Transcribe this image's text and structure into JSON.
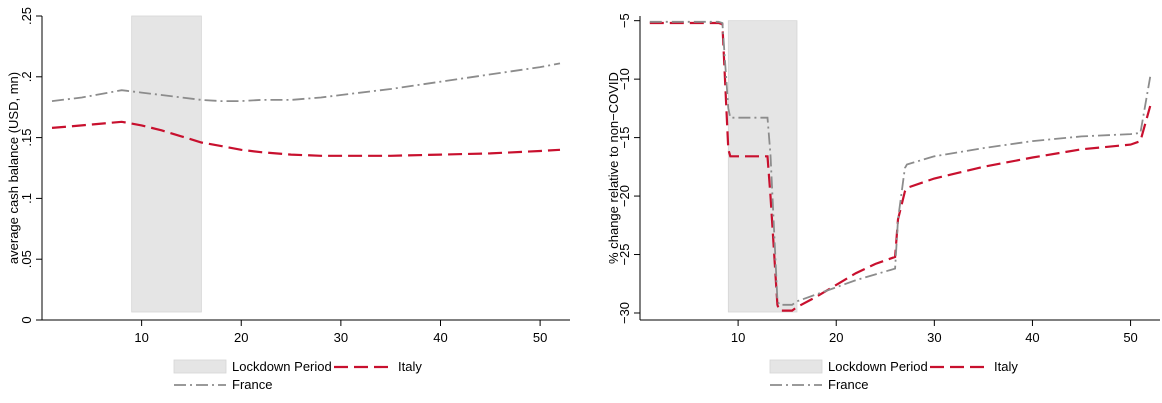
{
  "chart_data": [
    {
      "type": "line",
      "ylabel": "average cash balance (USD, mn)",
      "xlim": [
        0,
        53
      ],
      "ylim": [
        0,
        0.25
      ],
      "xticks": [
        10,
        20,
        30,
        40,
        50
      ],
      "yticks": [
        0,
        0.05,
        0.1,
        0.15,
        0.2,
        0.25
      ],
      "ytick_labels": [
        "0",
        ".05",
        ".1",
        ".15",
        ".2",
        ".25"
      ],
      "shaded_region": {
        "name": "Lockdown Period",
        "x": [
          9,
          16
        ],
        "color": "#e5e5e5"
      },
      "legend_position": "bottom",
      "series": [
        {
          "name": "Italy",
          "color": "#c8102e",
          "style": "dashed",
          "x": [
            1,
            4,
            8,
            10,
            12,
            14,
            16,
            18,
            20,
            22,
            25,
            28,
            30,
            35,
            40,
            45,
            50,
            52
          ],
          "y": [
            0.158,
            0.16,
            0.163,
            0.16,
            0.156,
            0.151,
            0.146,
            0.143,
            0.14,
            0.138,
            0.136,
            0.135,
            0.135,
            0.135,
            0.136,
            0.137,
            0.139,
            0.14
          ]
        },
        {
          "name": "France",
          "color": "#8c8c8c",
          "style": "dashdot",
          "x": [
            1,
            4,
            8,
            10,
            12,
            14,
            16,
            18,
            20,
            22,
            25,
            28,
            30,
            35,
            40,
            45,
            50,
            52
          ],
          "y": [
            0.18,
            0.183,
            0.189,
            0.187,
            0.185,
            0.183,
            0.181,
            0.18,
            0.18,
            0.181,
            0.181,
            0.183,
            0.185,
            0.19,
            0.196,
            0.202,
            0.208,
            0.211
          ]
        }
      ]
    },
    {
      "type": "line",
      "ylabel": "% change relative to non−COVID",
      "xlim": [
        0,
        53
      ],
      "ylim": [
        -30.6,
        -4.6
      ],
      "xticks": [
        10,
        20,
        30,
        40,
        50
      ],
      "yticks": [
        -30,
        -25,
        -20,
        -15,
        -10,
        -5
      ],
      "ytick_labels": [
        "−30",
        "−25",
        "−20",
        "−15",
        "−10",
        "−5"
      ],
      "shaded_region": {
        "name": "Lockdown Period",
        "x": [
          9,
          16
        ],
        "color": "#e5e5e5"
      },
      "legend_position": "bottom",
      "series": [
        {
          "name": "Italy",
          "color": "#c8102e",
          "style": "dashed",
          "x": [
            1,
            8,
            8.4,
            9,
            9.2,
            13,
            13.3,
            14,
            14.2,
            15.5,
            16,
            18,
            20,
            22,
            24,
            26,
            26.3,
            27,
            27.2,
            30,
            35,
            40,
            45,
            50,
            51,
            52
          ],
          "y": [
            -5.2,
            -5.2,
            -5.3,
            -16.0,
            -16.6,
            -16.6,
            -20.0,
            -29.3,
            -29.8,
            -29.8,
            -29.5,
            -28.6,
            -27.6,
            -26.6,
            -25.8,
            -25.2,
            -22.0,
            -19.6,
            -19.3,
            -18.5,
            -17.5,
            -16.7,
            -16.0,
            -15.6,
            -15.3,
            -12.3
          ]
        },
        {
          "name": "France",
          "color": "#8c8c8c",
          "style": "dashdot",
          "x": [
            1,
            8,
            8.4,
            9,
            9.2,
            13,
            13.3,
            14,
            14.2,
            15.5,
            16,
            18,
            20,
            22,
            24,
            26,
            26.3,
            27,
            27.2,
            30,
            35,
            40,
            45,
            50,
            51,
            52
          ],
          "y": [
            -5.1,
            -5.1,
            -5.2,
            -12.5,
            -13.3,
            -13.3,
            -16.5,
            -28.9,
            -29.3,
            -29.3,
            -29.0,
            -28.4,
            -27.8,
            -27.2,
            -26.7,
            -26.2,
            -22.0,
            -17.6,
            -17.3,
            -16.6,
            -15.9,
            -15.3,
            -14.9,
            -14.7,
            -14.6,
            -9.8
          ]
        }
      ]
    }
  ]
}
